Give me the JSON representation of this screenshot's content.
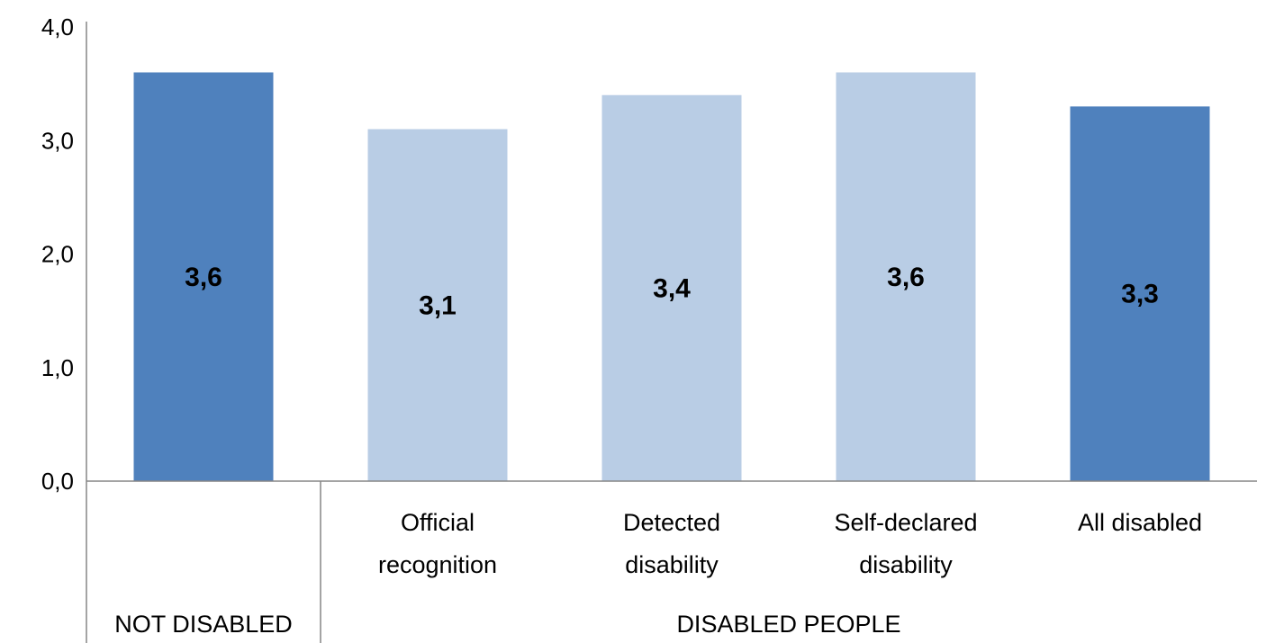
{
  "chart_data": {
    "type": "bar",
    "categories": [
      "",
      "Official recognition",
      "Detected disability",
      "Self-declared disability",
      "All disabled"
    ],
    "category_lines": [
      [
        ""
      ],
      [
        "Official",
        "recognition"
      ],
      [
        "Detected",
        "disability"
      ],
      [
        "Self-declared",
        "disability"
      ],
      [
        "All disabled"
      ]
    ],
    "values": [
      3.6,
      3.1,
      3.4,
      3.6,
      3.3
    ],
    "data_labels": [
      "3,6",
      "3,1",
      "3,4",
      "3,6",
      "3,3"
    ],
    "colors": [
      "#4f81bd",
      "#b9cde5",
      "#b9cde5",
      "#b9cde5",
      "#4f81bd"
    ],
    "groups": [
      {
        "label": "NOT DISABLED",
        "categories": [
          0
        ]
      },
      {
        "label": "DISABLED PEOPLE",
        "categories": [
          1,
          2,
          3,
          4
        ]
      }
    ],
    "ylim": [
      0,
      4
    ],
    "yticks": [
      0,
      1,
      2,
      3,
      4
    ],
    "ytick_labels": [
      "0,0",
      "1,0",
      "2,0",
      "3,0",
      "4,0"
    ],
    "title": "",
    "xlabel": "",
    "ylabel": "",
    "grid": false,
    "legend": "none",
    "axis_color": "#868686"
  }
}
